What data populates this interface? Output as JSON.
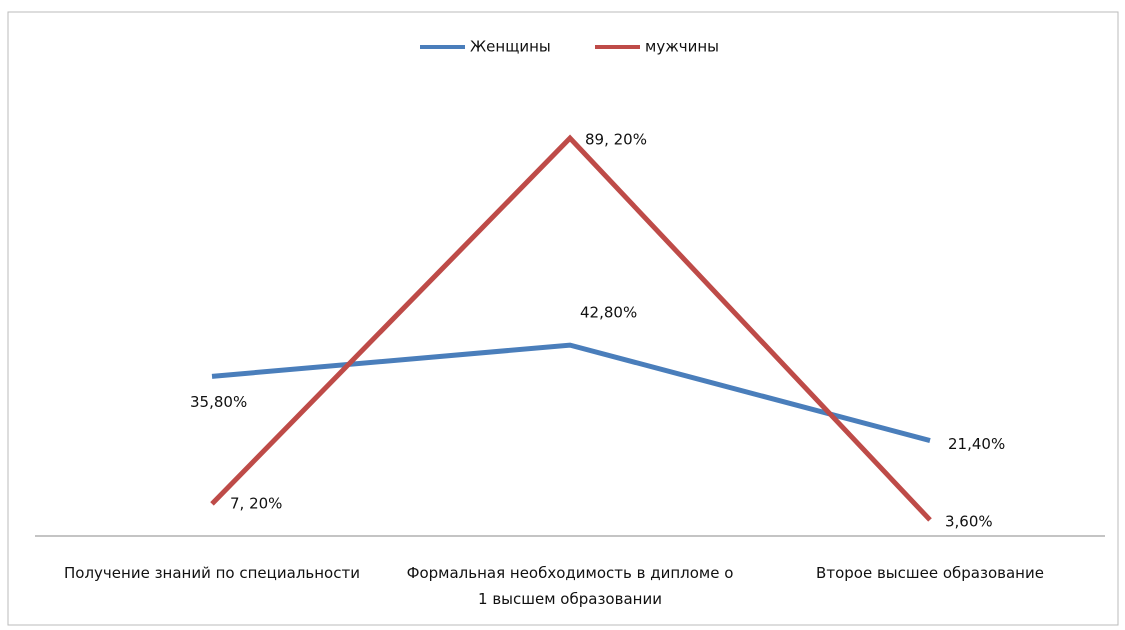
{
  "chart_data": {
    "type": "line",
    "categories": [
      "Получение знаний по специальности",
      "Формальная необходимость в дипломе о 1 высшем образовании",
      "Второе высшее образование"
    ],
    "series": [
      {
        "name": "Женщины",
        "color": "#4a7ebb",
        "values": [
          35.8,
          42.8,
          21.4
        ],
        "value_labels": [
          "35,80%",
          "42,80%",
          "21,40%"
        ]
      },
      {
        "name": "мужчины",
        "color": "#be4b48",
        "values": [
          7.2,
          89.2,
          3.6
        ],
        "value_labels": [
          "7, 20%",
          "89, 20%",
          "3,60%"
        ]
      }
    ],
    "ylim": [
      0,
      100
    ],
    "legend": "top"
  }
}
